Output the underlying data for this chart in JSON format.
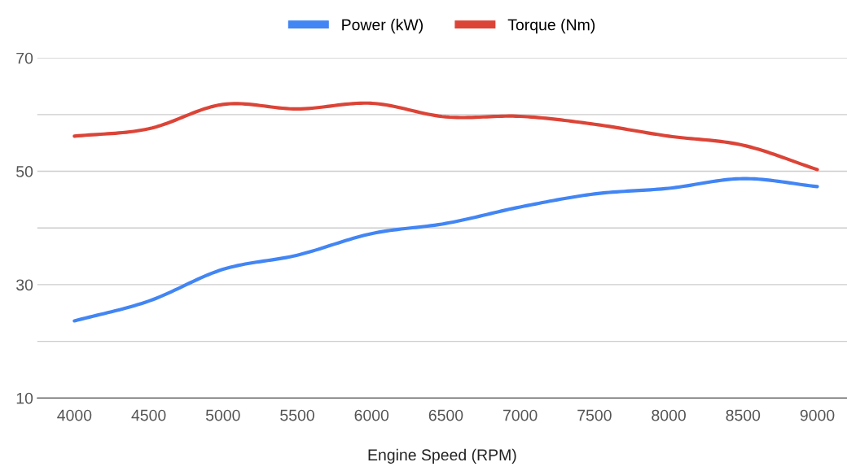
{
  "chart_data": {
    "type": "line",
    "xlabel": "Engine Speed (RPM)",
    "x": [
      4000,
      4500,
      5000,
      5500,
      6000,
      6500,
      7000,
      7500,
      8000,
      8500,
      9000
    ],
    "series": [
      {
        "name": "Power (kW)",
        "color": "#4285f4",
        "values": [
          23.6,
          27.1,
          32.7,
          35.2,
          39.0,
          40.8,
          43.7,
          46.0,
          47.0,
          48.7,
          47.3
        ]
      },
      {
        "name": "Torque (Nm)",
        "color": "#db4437",
        "values": [
          56.2,
          57.5,
          61.8,
          61.0,
          62.0,
          59.6,
          59.7,
          58.3,
          56.2,
          54.6,
          50.3
        ]
      }
    ],
    "xlim": [
      3750,
      9200
    ],
    "ylim": [
      10,
      70
    ],
    "xticks": [
      4000,
      4500,
      5000,
      5500,
      6000,
      6500,
      7000,
      7500,
      8000,
      8500,
      9000
    ],
    "yticks": [
      10,
      {
        "value": 20,
        "label": null
      },
      30,
      {
        "value": 40,
        "label": null
      },
      50,
      {
        "value": 60,
        "label": null
      },
      70
    ],
    "grid": "y",
    "legend": "top",
    "marker": "none",
    "line_style": "solid"
  }
}
